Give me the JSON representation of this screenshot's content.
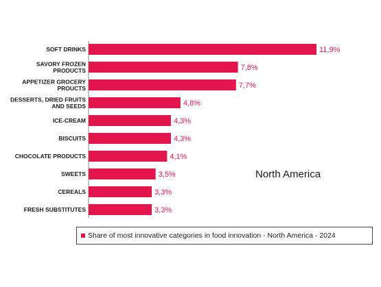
{
  "chart_data": {
    "type": "bar",
    "orientation": "horizontal",
    "categories": [
      [
        "SOFT DRINKS"
      ],
      [
        "SAVORY FROZEN",
        "PRODUCTS"
      ],
      [
        "APPETIZER GROCERY",
        "PROUCTS"
      ],
      [
        "DESSERTS, DRIED FRUITS",
        "AND SEEDS"
      ],
      [
        "ICE-CREAM"
      ],
      [
        "BISCUITS"
      ],
      [
        "CHOCOLATE PRODUCTS"
      ],
      [
        "SWEETS"
      ],
      [
        "CEREALS"
      ],
      [
        "FRESH SUBSTITUTES"
      ]
    ],
    "values": [
      11.9,
      7.8,
      7.7,
      4.8,
      4.3,
      4.3,
      4.1,
      3.5,
      3.3,
      3.3
    ],
    "value_labels": [
      "11,9%",
      "7,8%",
      "7,7%",
      "4,8%",
      "4,3%",
      "4,3%",
      "4,1%",
      "3,5%",
      "3,3%",
      "3,3%"
    ],
    "annotation": "North America",
    "series": [
      {
        "name": "Share of most innovative categories in food innovation - North America - 2024",
        "values": [
          11.9,
          7.8,
          7.7,
          4.8,
          4.3,
          4.3,
          4.1,
          3.5,
          3.3,
          3.3
        ]
      }
    ],
    "legend_position": "bottom",
    "grid": false,
    "bar_color": "#e3154d"
  }
}
